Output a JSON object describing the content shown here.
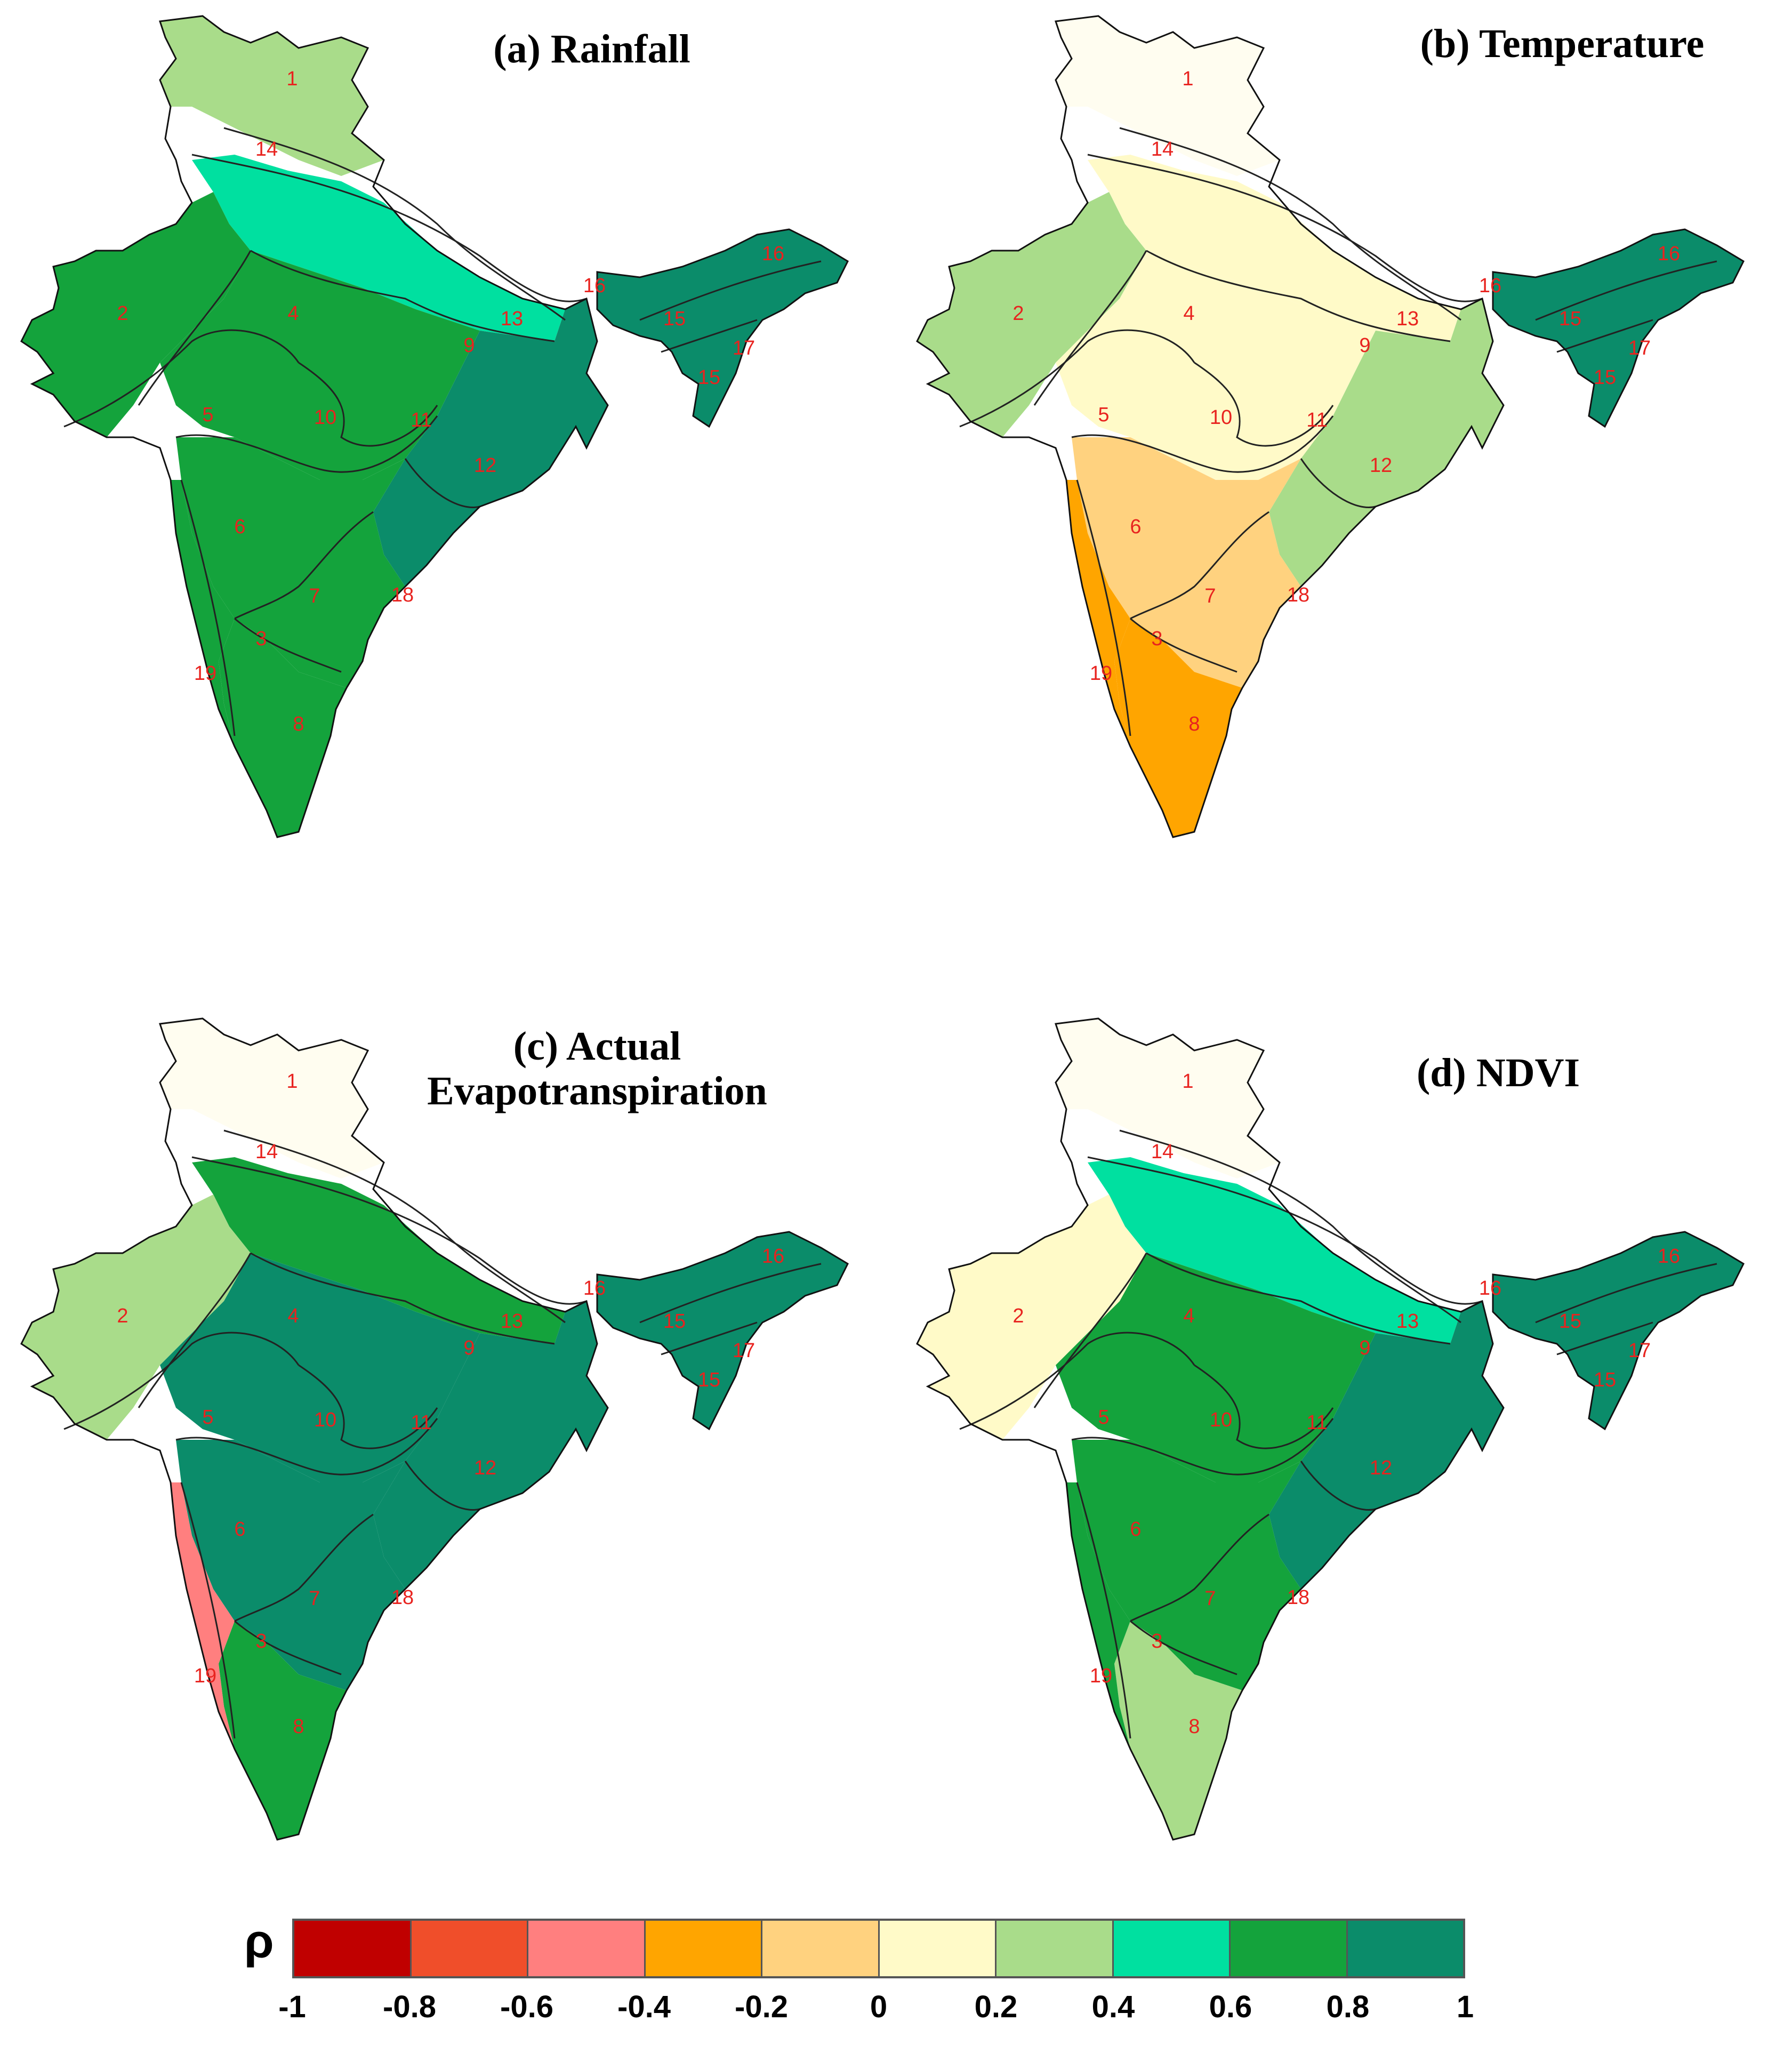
{
  "figure": {
    "panels": [
      {
        "id": "a",
        "title_line1": "(a) Rainfall",
        "title_line2": "",
        "colors": {
          "north": "#a9dc8a",
          "northwest": "#14a33c",
          "central": "#14a33c",
          "east": "#0b8c6a",
          "south": "#14a33c",
          "southtip": "#14a33c",
          "gangetic": "#00e0a0",
          "ne": "#0b8c6a",
          "west_coast": "#14a33c"
        }
      },
      {
        "id": "b",
        "title_line1": "(b) Temperature",
        "title_line2": "",
        "colors": {
          "north": "#fffdf0",
          "northwest": "#a9dc8a",
          "central": "#fffac8",
          "east": "#a9dc8a",
          "south": "#ffd27f",
          "southtip": "#ffa500",
          "gangetic": "#fffac8",
          "ne": "#0b8c6a",
          "west_coast": "#ffa500"
        }
      },
      {
        "id": "c",
        "title_line1": "(c) Actual",
        "title_line2": "Evapotranspiration",
        "colors": {
          "north": "#fffdf0",
          "northwest": "#a9dc8a",
          "central": "#0b8c6a",
          "east": "#0b8c6a",
          "south": "#0b8c6a",
          "southtip": "#14a33c",
          "gangetic": "#14a33c",
          "ne": "#0b8c6a",
          "west_coast": "#ff7f7f"
        }
      },
      {
        "id": "d",
        "title_line1": "(d) NDVI",
        "title_line2": "",
        "colors": {
          "north": "#fffdf0",
          "northwest": "#fffac8",
          "central": "#14a33c",
          "east": "#0b8c6a",
          "south": "#14a33c",
          "southtip": "#a9dc8a",
          "gangetic": "#00e0a0",
          "ne": "#0b8c6a",
          "west_coast": "#14a33c"
        }
      }
    ],
    "zone_labels": [
      "1",
      "2",
      "3",
      "4",
      "5",
      "6",
      "7",
      "8",
      "9",
      "10",
      "11",
      "12",
      "13",
      "14",
      "15",
      "15",
      "16",
      "16",
      "17",
      "18",
      "19"
    ]
  },
  "legend": {
    "symbol": "ρ",
    "ticks": [
      "-1",
      "-0.8",
      "-0.6",
      "-0.4",
      "-0.2",
      "0",
      "0.2",
      "0.4",
      "0.6",
      "0.8",
      "1"
    ],
    "colors": [
      "#c00000",
      "#f04e2a",
      "#ff7f7f",
      "#ffa500",
      "#ffd27f",
      "#fffac8",
      "#a9dc8a",
      "#00e0a0",
      "#14a33c",
      "#0b8c6a"
    ]
  }
}
